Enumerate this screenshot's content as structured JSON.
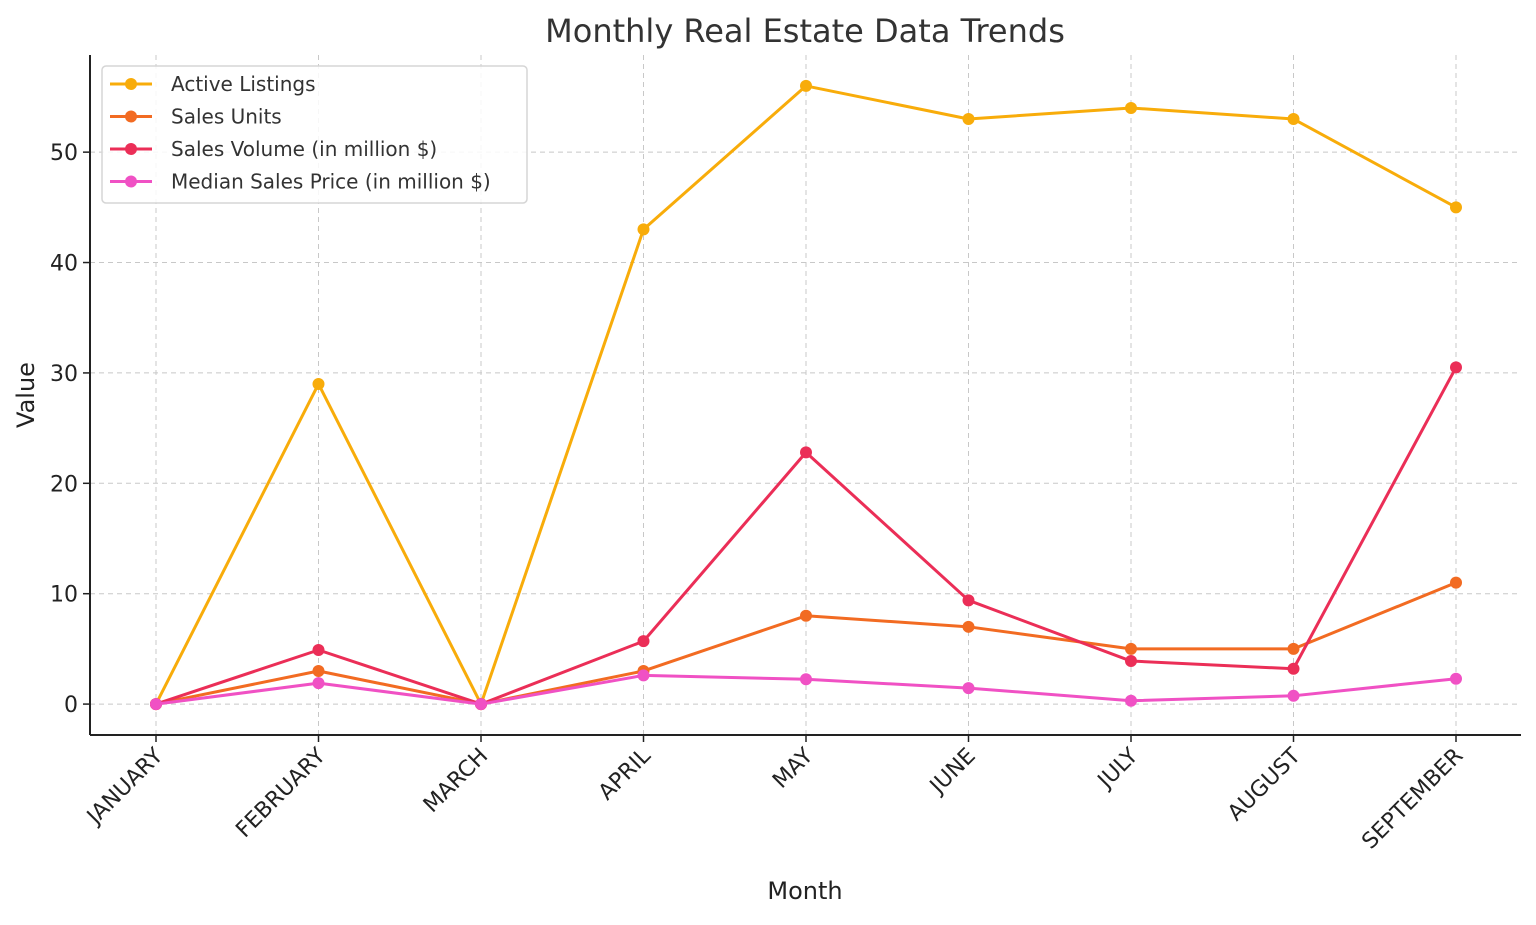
{
  "chart_data": {
    "type": "line",
    "title": "Monthly Real Estate Data Trends",
    "xlabel": "Month",
    "ylabel": "Value",
    "categories": [
      "JANUARY",
      "FEBRUARY",
      "MARCH",
      "APRIL",
      "MAY",
      "JUNE",
      "JULY",
      "AUGUST",
      "SEPTEMBER"
    ],
    "ylim": [
      -2.8,
      58.8
    ],
    "yticks": [
      0,
      10,
      20,
      30,
      40,
      50
    ],
    "grid": true,
    "legend_position": "top-left",
    "series": [
      {
        "name": "Active Listings",
        "color": "#F8AC0A",
        "values": [
          0,
          29,
          0,
          43,
          56,
          53,
          54,
          53,
          45
        ]
      },
      {
        "name": "Sales Units",
        "color": "#F26B22",
        "values": [
          0,
          3,
          0,
          3,
          8,
          7,
          5,
          5,
          11
        ]
      },
      {
        "name": "Sales Volume (in million $)",
        "color": "#EB2E57",
        "values": [
          0,
          4.9,
          0,
          5.7,
          22.8,
          9.4,
          3.9,
          3.2,
          30.5
        ]
      },
      {
        "name": "Median Sales Price (in million $)",
        "color": "#F051C4",
        "values": [
          0,
          1.9,
          0,
          2.6,
          2.25,
          1.45,
          0.3,
          0.75,
          2.3
        ]
      }
    ]
  }
}
